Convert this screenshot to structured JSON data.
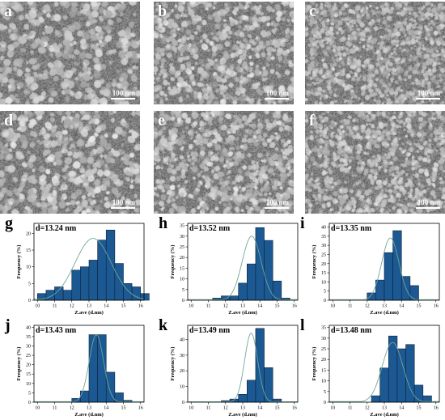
{
  "sem_panels": [
    {
      "letter": "a",
      "scale": "100 nm",
      "grain": 4.2,
      "tone": 0.55
    },
    {
      "letter": "b",
      "scale": "100 nm",
      "grain": 3.4,
      "tone": 0.6
    },
    {
      "letter": "c",
      "scale": "100 nm",
      "grain": 2.6,
      "tone": 0.5
    },
    {
      "letter": "d",
      "scale": "100 nm",
      "grain": 4.0,
      "tone": 0.62
    },
    {
      "letter": "e",
      "scale": "100 nm",
      "grain": 3.2,
      "tone": 0.58
    },
    {
      "letter": "f",
      "scale": "100 nm",
      "grain": 2.8,
      "tone": 0.54
    }
  ],
  "chart_data": [
    {
      "letter": "g",
      "type": "bar",
      "d_label": "d=13.24 nm",
      "xlabel": "Z.ave (d.nm)",
      "ylabel": "Frequency (%)",
      "xticks": [
        10,
        11,
        12,
        13,
        14,
        15,
        16
      ],
      "yticks": [
        0,
        5,
        10,
        15,
        20
      ],
      "ylim": [
        0,
        23
      ],
      "xlim": [
        9.8,
        16.2
      ],
      "bin_start": 10.0,
      "bin_width": 0.5,
      "values": [
        2,
        3,
        4,
        3,
        9,
        10,
        12,
        18,
        21,
        11,
        5,
        4,
        2
      ],
      "fit": {
        "mu": 13.24,
        "sigma": 1.05,
        "peak": 18.5
      }
    },
    {
      "letter": "h",
      "type": "bar",
      "d_label": "d=13.52 nm",
      "xlabel": "Z.ave (d.nm)",
      "ylabel": "Frequency (%)",
      "xticks": [
        10,
        11,
        12,
        13,
        14,
        15,
        16
      ],
      "yticks": [
        0,
        5,
        10,
        15,
        20,
        25,
        30,
        35
      ],
      "ylim": [
        0,
        36
      ],
      "xlim": [
        9.8,
        16.2
      ],
      "bin_start": 11.25,
      "bin_width": 0.5,
      "values": [
        1,
        2,
        2,
        8,
        17,
        34,
        28,
        9,
        1
      ],
      "fit": {
        "mu": 13.52,
        "sigma": 0.55,
        "peak": 30
      }
    },
    {
      "letter": "i",
      "type": "bar",
      "d_label": "d=13.35 nm",
      "xlabel": "Z.ave (d.nm)",
      "ylabel": "Frequency (%)",
      "xticks": [
        10,
        11,
        12,
        13,
        14,
        15,
        16
      ],
      "yticks": [
        0,
        5,
        10,
        15,
        20,
        25,
        30,
        35,
        40
      ],
      "ylim": [
        0,
        42
      ],
      "xlim": [
        9.8,
        16.2
      ],
      "bin_start": 12.0,
      "bin_width": 0.5,
      "values": [
        4,
        11,
        26,
        38,
        13,
        8
      ],
      "fit": {
        "mu": 13.35,
        "sigma": 0.5,
        "peak": 34
      }
    },
    {
      "letter": "j",
      "type": "bar",
      "d_label": "d=13.43 nm",
      "xlabel": "Z.ave (d.nm)",
      "ylabel": "Frequency (%)",
      "xticks": [
        10,
        11,
        12,
        13,
        14,
        15,
        16
      ],
      "yticks": [
        0,
        5,
        10,
        15,
        20,
        25,
        30,
        35,
        40
      ],
      "ylim": [
        0,
        41
      ],
      "xlim": [
        9.8,
        16.2
      ],
      "bin_start": 12.0,
      "bin_width": 0.5,
      "values": [
        2,
        6,
        36,
        36,
        16,
        5,
        1
      ],
      "fit": {
        "mu": 13.43,
        "sigma": 0.42,
        "peak": 36
      }
    },
    {
      "letter": "k",
      "type": "bar",
      "d_label": "d=13.49 nm",
      "xlabel": "Z.ave (d.nm)",
      "ylabel": "Frequency (%)",
      "xticks": [
        10,
        11,
        12,
        13,
        14,
        15,
        16
      ],
      "yticks": [
        0,
        10,
        20,
        30,
        40
      ],
      "ylim": [
        0,
        49
      ],
      "xlim": [
        9.8,
        16.2
      ],
      "bin_start": 11.75,
      "bin_width": 0.5,
      "values": [
        1,
        2,
        5,
        14,
        47,
        22,
        2
      ],
      "fit": {
        "mu": 13.49,
        "sigma": 0.38,
        "peak": 44
      }
    },
    {
      "letter": "l",
      "type": "bar",
      "d_label": "d=13.48 nm",
      "xlabel": "Z.ave (d.nm)",
      "ylabel": "Frequency (%)",
      "xticks": [
        10,
        11,
        12,
        13,
        14,
        15,
        16
      ],
      "yticks": [
        0,
        5,
        10,
        15,
        20,
        25,
        30,
        35
      ],
      "ylim": [
        0,
        36
      ],
      "xlim": [
        9.8,
        16.2
      ],
      "bin_start": 12.25,
      "bin_width": 0.5,
      "values": [
        3,
        16,
        31,
        25,
        27,
        8,
        3
      ],
      "fit": {
        "mu": 13.48,
        "sigma": 0.6,
        "peak": 28
      }
    }
  ],
  "colors": {
    "bar": "#1c5891",
    "bar_edge": "#0c2440",
    "fit": "#6fa79a",
    "axis": "#000000"
  }
}
